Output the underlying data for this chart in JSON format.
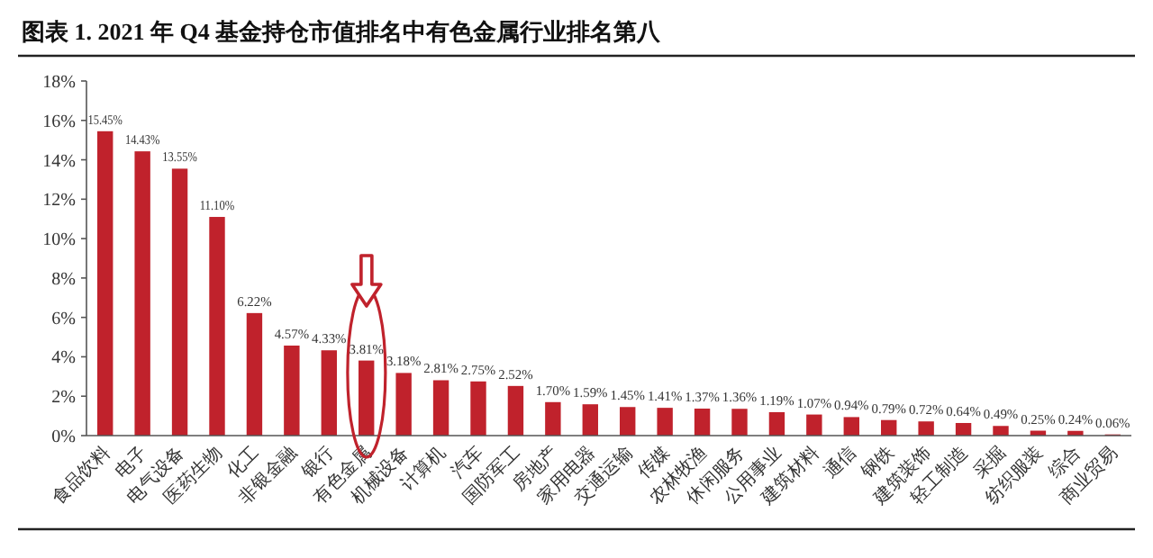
{
  "chart_data": {
    "type": "bar",
    "title": "图表 1.  2021 年 Q4 基金持仓市值排名中有色金属行业排名第八",
    "categories": [
      "食品饮料",
      "电子",
      "电气设备",
      "医药生物",
      "化工",
      "非银金融",
      "银行",
      "有色金属",
      "机械设备",
      "计算机",
      "汽车",
      "国防军工",
      "房地产",
      "家用电器",
      "交通运输",
      "传媒",
      "农林牧渔",
      "休闲服务",
      "公用事业",
      "建筑材料",
      "通信",
      "钢铁",
      "建筑装饰",
      "轻工制造",
      "采掘",
      "纺织服装",
      "综合",
      "商业贸易"
    ],
    "values": [
      15.45,
      14.43,
      13.55,
      11.1,
      6.22,
      4.57,
      4.33,
      3.81,
      3.18,
      2.81,
      2.75,
      2.52,
      1.7,
      1.59,
      1.45,
      1.41,
      1.37,
      1.36,
      1.19,
      1.07,
      0.94,
      0.79,
      0.72,
      0.64,
      0.49,
      0.25,
      0.24,
      0.06
    ],
    "value_labels": [
      "15.45%",
      "14.43%",
      "13.55%",
      "11.10%",
      "6.22%",
      "4.57%",
      "4.33%",
      "3.81%",
      "3.18%",
      "2.81%",
      "2.75%",
      "2.52%",
      "1.70%",
      "1.59%",
      "1.45%",
      "1.41%",
      "1.37%",
      "1.36%",
      "1.19%",
      "1.07%",
      "0.94%",
      "0.79%",
      "0.72%",
      "0.64%",
      "0.49%",
      "0.25%",
      "0.24%",
      "0.06%"
    ],
    "color": "#c0222c",
    "ylim": [
      0,
      18
    ],
    "yticks": [
      {
        "value": 0,
        "label": "0%"
      },
      {
        "value": 2,
        "label": "2%"
      },
      {
        "value": 4,
        "label": "4%"
      },
      {
        "value": 6,
        "label": "6%"
      },
      {
        "value": 8,
        "label": "8%"
      },
      {
        "value": 10,
        "label": "10%"
      },
      {
        "value": 12,
        "label": "12%"
      },
      {
        "value": 14,
        "label": "14%"
      },
      {
        "value": 16,
        "label": "16%"
      },
      {
        "value": 18,
        "label": "18%"
      }
    ],
    "grid": false
  }
}
